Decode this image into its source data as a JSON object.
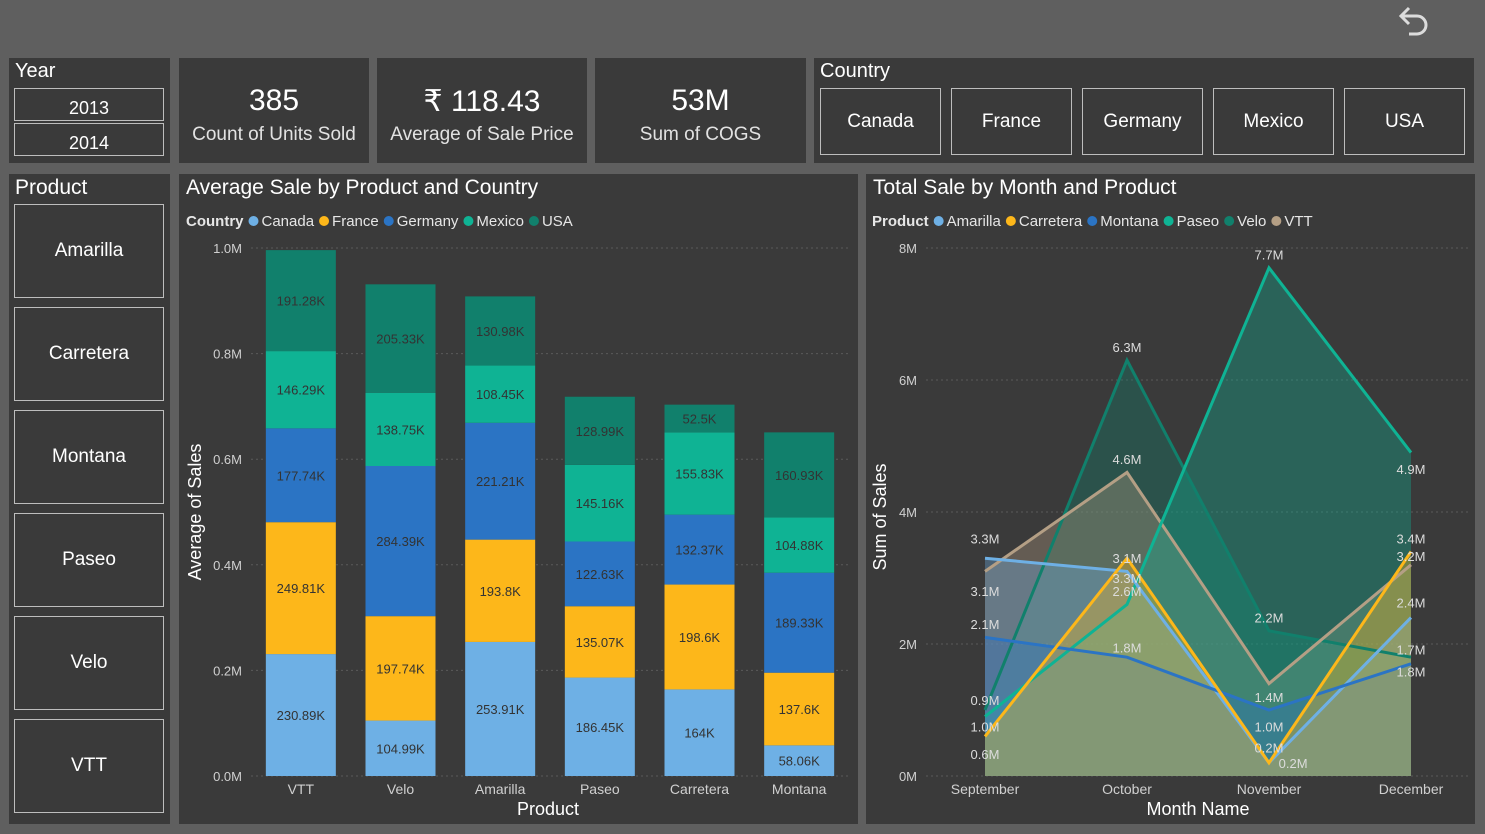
{
  "year": {
    "title": "Year",
    "items": [
      "2013",
      "2014"
    ]
  },
  "kpis": [
    {
      "value": "385",
      "label": "Count of Units Sold"
    },
    {
      "value": "₹ 118.43",
      "label": "Average of Sale Price"
    },
    {
      "value": "53M",
      "label": "Sum of COGS"
    }
  ],
  "country": {
    "title": "Country",
    "items": [
      "Canada",
      "France",
      "Germany",
      "Mexico",
      "USA"
    ]
  },
  "product": {
    "title": "Product",
    "items": [
      "Amarilla",
      "Carretera",
      "Montana",
      "Paseo",
      "Velo",
      "VTT"
    ]
  },
  "colors": {
    "Canada": "#6eb0e5",
    "France": "#fdb71a",
    "Germany": "#2b74c4",
    "Mexico": "#0fb394",
    "USA": "#11806c",
    "Amarilla": "#6eb0e5",
    "Carretera": "#fdb71a",
    "Montana": "#2b74c4",
    "Paseo": "#0fb394",
    "Velo": "#11806c",
    "VTT": "#b49f85"
  },
  "chart_data": [
    {
      "type": "bar",
      "stacked": true,
      "title": "Average Sale by Product and Country",
      "legend_title": "Country",
      "xlabel": "Product",
      "ylabel": "Average of Sales",
      "ylim": [
        0,
        1000000
      ],
      "yticks": [
        "0.0M",
        "0.2M",
        "0.4M",
        "0.6M",
        "0.8M",
        "1.0M"
      ],
      "categories": [
        "VTT",
        "Velo",
        "Amarilla",
        "Paseo",
        "Carretera",
        "Montana"
      ],
      "series": [
        {
          "name": "Canada",
          "values": [
            230890,
            104990,
            253910,
            186450,
            164000,
            58060
          ],
          "labels": [
            "230.89K",
            "104.99K",
            "253.91K",
            "186.45K",
            "164K",
            "58.06K"
          ]
        },
        {
          "name": "France",
          "values": [
            249810,
            197740,
            193800,
            135070,
            198600,
            137600
          ],
          "labels": [
            "249.81K",
            "197.74K",
            "193.8K",
            "135.07K",
            "198.6K",
            "137.6K"
          ]
        },
        {
          "name": "Germany",
          "values": [
            177740,
            284390,
            221210,
            122630,
            132370,
            189330
          ],
          "labels": [
            "177.74K",
            "284.39K",
            "221.21K",
            "122.63K",
            "132.37K",
            "189.33K"
          ]
        },
        {
          "name": "Mexico",
          "values": [
            146290,
            138750,
            108450,
            145160,
            155830,
            104880
          ],
          "labels": [
            "146.29K",
            "138.75K",
            "108.45K",
            "145.16K",
            "155.83K",
            "104.88K"
          ]
        },
        {
          "name": "USA",
          "values": [
            191280,
            205330,
            130980,
            128990,
            52500,
            160930
          ],
          "labels": [
            "191.28K",
            "205.33K",
            "130.98K",
            "128.99K",
            "52.5K",
            "160.93K"
          ]
        }
      ]
    },
    {
      "type": "area",
      "title": "Total Sale by Month and Product",
      "legend_title": "Product",
      "xlabel": "Month Name",
      "ylabel": "Sum of Sales",
      "ylim": [
        0,
        8000000
      ],
      "yticks": [
        "0M",
        "2M",
        "4M",
        "6M",
        "8M"
      ],
      "categories": [
        "September",
        "October",
        "November",
        "December"
      ],
      "series": [
        {
          "name": "Amarilla",
          "values": [
            3300000,
            3100000,
            200000,
            2400000
          ]
        },
        {
          "name": "Carretera",
          "values": [
            600000,
            3300000,
            200000,
            3400000
          ]
        },
        {
          "name": "Montana",
          "values": [
            2100000,
            1800000,
            1000000,
            1700000
          ]
        },
        {
          "name": "Paseo",
          "values": [
            900000,
            2600000,
            7700000,
            4900000
          ]
        },
        {
          "name": "Velo",
          "values": [
            1000000,
            6300000,
            2200000,
            1800000
          ]
        },
        {
          "name": "VTT",
          "values": [
            3100000,
            4600000,
            1400000,
            3200000
          ]
        }
      ],
      "point_labels": [
        {
          "text": "3.3M",
          "x": 0,
          "y": 3.6
        },
        {
          "text": "3.1M",
          "x": 0,
          "y": 2.8
        },
        {
          "text": "2.1M",
          "x": 0,
          "y": 2.3
        },
        {
          "text": "0.9M",
          "x": 0,
          "y": 1.15
        },
        {
          "text": "1.0M",
          "x": 0,
          "y": 0.75
        },
        {
          "text": "0.6M",
          "x": 0,
          "y": 0.33
        },
        {
          "text": "6.3M",
          "x": 1,
          "y": 6.5
        },
        {
          "text": "4.6M",
          "x": 1,
          "y": 4.8
        },
        {
          "text": "3.1M",
          "x": 1,
          "y": 3.3
        },
        {
          "text": "3.3M",
          "x": 1,
          "y": 3.0
        },
        {
          "text": "2.6M",
          "x": 1,
          "y": 2.8
        },
        {
          "text": "1.8M",
          "x": 1,
          "y": 1.95
        },
        {
          "text": "7.7M",
          "x": 2,
          "y": 7.9
        },
        {
          "text": "2.2M",
          "x": 2,
          "y": 2.4
        },
        {
          "text": "1.4M",
          "x": 2,
          "y": 1.2
        },
        {
          "text": "1.0M",
          "x": 2,
          "y": 0.75
        },
        {
          "text": "0.2M",
          "x": 2,
          "y": 0.43
        },
        {
          "text": "0.2M",
          "x": 2.17,
          "y": 0.2
        },
        {
          "text": "4.9M",
          "x": 3,
          "y": 4.65
        },
        {
          "text": "3.4M",
          "x": 3,
          "y": 3.6
        },
        {
          "text": "3.2M",
          "x": 3,
          "y": 3.33
        },
        {
          "text": "2.4M",
          "x": 3,
          "y": 2.63
        },
        {
          "text": "1.7M",
          "x": 3,
          "y": 1.92
        },
        {
          "text": "1.8M",
          "x": 3,
          "y": 1.58
        }
      ]
    }
  ]
}
